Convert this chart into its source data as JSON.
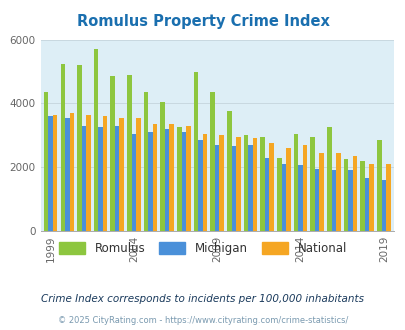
{
  "title": "Romulus Property Crime Index",
  "title_color": "#1a6faf",
  "subtitle": "Crime Index corresponds to incidents per 100,000 inhabitants",
  "footer": "© 2025 CityRating.com - https://www.cityrating.com/crime-statistics/",
  "years": [
    1999,
    2000,
    2001,
    2002,
    2003,
    2004,
    2005,
    2006,
    2007,
    2008,
    2009,
    2010,
    2011,
    2012,
    2013,
    2014,
    2015,
    2016,
    2017,
    2018,
    2019,
    2020
  ],
  "romulus": [
    4350,
    5250,
    5200,
    5700,
    4850,
    4900,
    4350,
    4050,
    3250,
    5000,
    4350,
    3750,
    3000,
    2950,
    2300,
    3050,
    2950,
    3250,
    2250,
    2200,
    2850,
    null
  ],
  "michigan": [
    3600,
    3550,
    3300,
    3250,
    3300,
    3050,
    3100,
    3200,
    3100,
    2850,
    2700,
    2650,
    2700,
    2300,
    2100,
    2060,
    1950,
    1900,
    1900,
    1650,
    1600,
    null
  ],
  "national": [
    3650,
    3700,
    3650,
    3600,
    3550,
    3550,
    3350,
    3350,
    3300,
    3050,
    3000,
    2950,
    2900,
    2750,
    2600,
    2700,
    2450,
    2460,
    2360,
    2100,
    2100,
    null
  ],
  "bar_colors": {
    "romulus": "#8dc63f",
    "michigan": "#4a90d9",
    "national": "#f5a623"
  },
  "plot_bg_color": "#ddeef6",
  "ylim": [
    0,
    6000
  ],
  "yticks": [
    0,
    2000,
    4000,
    6000
  ],
  "legend_labels": [
    "Romulus",
    "Michigan",
    "National"
  ],
  "bar_width": 0.27,
  "tick_label_size": 7.5,
  "grid_color": "#c8d8e0",
  "subtitle_color": "#1a3a5c",
  "footer_color": "#7a9ab0"
}
